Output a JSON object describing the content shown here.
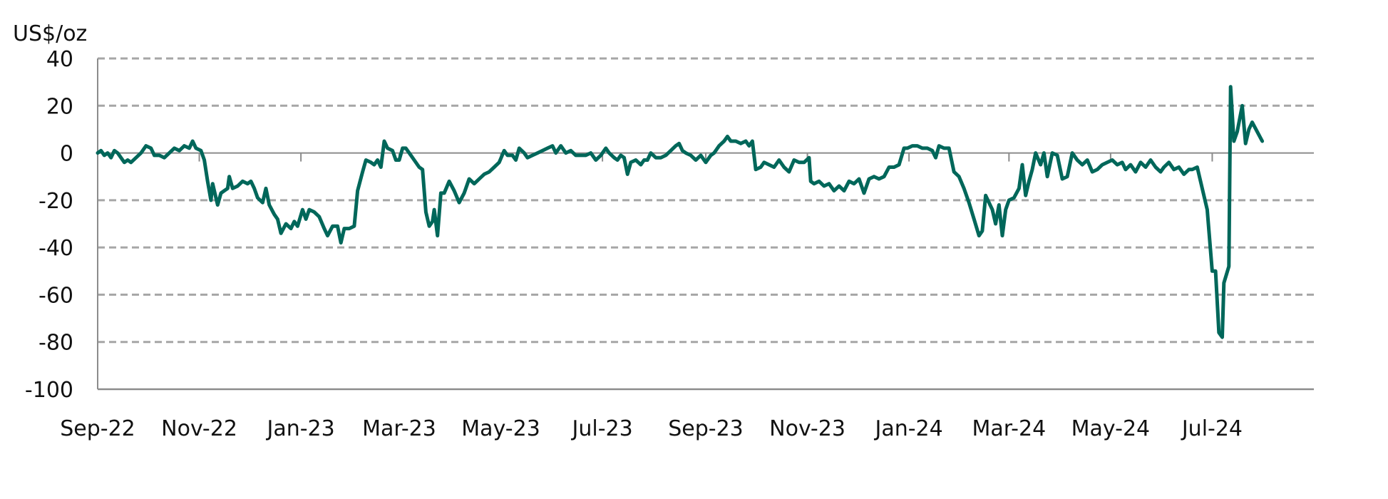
{
  "chart_data": {
    "type": "line",
    "title": "",
    "ylabel": "US$/oz",
    "xlabel": "",
    "ylim": [
      -100,
      40
    ],
    "yticks": [
      40,
      20,
      0,
      -20,
      -40,
      -60,
      -80,
      -100
    ],
    "ytick_labels": [
      "40",
      "20",
      "0",
      "-20",
      "-40",
      "-60",
      "-80",
      "-100"
    ],
    "x_range": [
      "2022-09-01",
      "2024-08-31"
    ],
    "xticks": [
      {
        "date": "2022-09-01",
        "label": "Sep-22"
      },
      {
        "date": "2022-11-01",
        "label": "Nov-22"
      },
      {
        "date": "2023-01-01",
        "label": "Jan-23"
      },
      {
        "date": "2023-03-01",
        "label": "Mar-23"
      },
      {
        "date": "2023-05-01",
        "label": "May-23"
      },
      {
        "date": "2023-07-01",
        "label": "Jul-23"
      },
      {
        "date": "2023-09-01",
        "label": "Sep-23"
      },
      {
        "date": "2023-11-01",
        "label": "Nov-23"
      },
      {
        "date": "2024-01-01",
        "label": "Jan-24"
      },
      {
        "date": "2024-03-01",
        "label": "Mar-24"
      },
      {
        "date": "2024-05-01",
        "label": "May-24"
      },
      {
        "date": "2024-07-01",
        "label": "Jul-24"
      }
    ],
    "grid": "horizontal dashed",
    "series": [
      {
        "color": "#00675a",
        "points": [
          [
            "2022-09-01",
            0
          ],
          [
            "2022-09-03",
            1
          ],
          [
            "2022-09-05",
            -1
          ],
          [
            "2022-09-07",
            0
          ],
          [
            "2022-09-09",
            -2
          ],
          [
            "2022-09-11",
            1
          ],
          [
            "2022-09-13",
            0
          ],
          [
            "2022-09-15",
            -2
          ],
          [
            "2022-09-17",
            -4
          ],
          [
            "2022-09-19",
            -3
          ],
          [
            "2022-09-21",
            -4
          ],
          [
            "2022-09-24",
            -2
          ],
          [
            "2022-09-27",
            0
          ],
          [
            "2022-09-30",
            3
          ],
          [
            "2022-10-03",
            2
          ],
          [
            "2022-10-05",
            -1
          ],
          [
            "2022-10-08",
            -1
          ],
          [
            "2022-10-11",
            -2
          ],
          [
            "2022-10-14",
            0
          ],
          [
            "2022-10-17",
            2
          ],
          [
            "2022-10-20",
            1
          ],
          [
            "2022-10-23",
            3
          ],
          [
            "2022-10-26",
            2
          ],
          [
            "2022-10-28",
            5
          ],
          [
            "2022-10-30",
            2
          ],
          [
            "2022-11-02",
            1
          ],
          [
            "2022-11-04",
            -3
          ],
          [
            "2022-11-06",
            -12
          ],
          [
            "2022-11-08",
            -20
          ],
          [
            "2022-11-09",
            -13
          ],
          [
            "2022-11-10",
            -16
          ],
          [
            "2022-11-12",
            -22
          ],
          [
            "2022-11-14",
            -17
          ],
          [
            "2022-11-16",
            -16
          ],
          [
            "2022-11-18",
            -15
          ],
          [
            "2022-11-19",
            -10
          ],
          [
            "2022-11-21",
            -15
          ],
          [
            "2022-11-24",
            -14
          ],
          [
            "2022-11-27",
            -12
          ],
          [
            "2022-11-30",
            -13
          ],
          [
            "2022-12-02",
            -12
          ],
          [
            "2022-12-04",
            -15
          ],
          [
            "2022-12-06",
            -19
          ],
          [
            "2022-12-09",
            -21
          ],
          [
            "2022-12-11",
            -15
          ],
          [
            "2022-12-13",
            -22
          ],
          [
            "2022-12-16",
            -26
          ],
          [
            "2022-12-18",
            -28
          ],
          [
            "2022-12-20",
            -34
          ],
          [
            "2022-12-23",
            -30
          ],
          [
            "2022-12-26",
            -32
          ],
          [
            "2022-12-28",
            -29
          ],
          [
            "2022-12-30",
            -31
          ],
          [
            "2023-01-02",
            -24
          ],
          [
            "2023-01-04",
            -28
          ],
          [
            "2023-01-06",
            -24
          ],
          [
            "2023-01-09",
            -25
          ],
          [
            "2023-01-12",
            -27
          ],
          [
            "2023-01-15",
            -32
          ],
          [
            "2023-01-17",
            -35
          ],
          [
            "2023-01-20",
            -31
          ],
          [
            "2023-01-23",
            -31
          ],
          [
            "2023-01-25",
            -38
          ],
          [
            "2023-01-27",
            -32
          ],
          [
            "2023-01-30",
            -32
          ],
          [
            "2023-02-02",
            -31
          ],
          [
            "2023-02-04",
            -16
          ],
          [
            "2023-02-07",
            -8
          ],
          [
            "2023-02-09",
            -3
          ],
          [
            "2023-02-12",
            -4
          ],
          [
            "2023-02-14",
            -5
          ],
          [
            "2023-02-16",
            -3
          ],
          [
            "2023-02-18",
            -6
          ],
          [
            "2023-02-20",
            5
          ],
          [
            "2023-02-22",
            2
          ],
          [
            "2023-02-25",
            1
          ],
          [
            "2023-02-27",
            -3
          ],
          [
            "2023-03-01",
            -3
          ],
          [
            "2023-03-03",
            2
          ],
          [
            "2023-03-05",
            2
          ],
          [
            "2023-03-08",
            -1
          ],
          [
            "2023-03-10",
            -3
          ],
          [
            "2023-03-13",
            -6
          ],
          [
            "2023-03-15",
            -7
          ],
          [
            "2023-03-17",
            -25
          ],
          [
            "2023-03-19",
            -31
          ],
          [
            "2023-03-21",
            -29
          ],
          [
            "2023-03-22",
            -24
          ],
          [
            "2023-03-24",
            -35
          ],
          [
            "2023-03-26",
            -17
          ],
          [
            "2023-03-28",
            -17
          ],
          [
            "2023-03-31",
            -12
          ],
          [
            "2023-04-03",
            -16
          ],
          [
            "2023-04-06",
            -21
          ],
          [
            "2023-04-09",
            -17
          ],
          [
            "2023-04-12",
            -11
          ],
          [
            "2023-04-15",
            -13
          ],
          [
            "2023-04-18",
            -11
          ],
          [
            "2023-04-21",
            -9
          ],
          [
            "2023-04-24",
            -8
          ],
          [
            "2023-04-27",
            -6
          ],
          [
            "2023-04-30",
            -4
          ],
          [
            "2023-05-03",
            1
          ],
          [
            "2023-05-05",
            -1
          ],
          [
            "2023-05-08",
            -1
          ],
          [
            "2023-05-10",
            -3
          ],
          [
            "2023-05-12",
            2
          ],
          [
            "2023-05-15",
            0
          ],
          [
            "2023-05-17",
            -2
          ],
          [
            "2023-05-20",
            -1
          ],
          [
            "2023-05-23",
            0
          ],
          [
            "2023-05-26",
            1
          ],
          [
            "2023-05-29",
            2
          ],
          [
            "2023-06-01",
            3
          ],
          [
            "2023-06-03",
            0
          ],
          [
            "2023-06-06",
            3
          ],
          [
            "2023-06-09",
            0
          ],
          [
            "2023-06-12",
            1
          ],
          [
            "2023-06-15",
            -1
          ],
          [
            "2023-06-18",
            -1
          ],
          [
            "2023-06-21",
            -1
          ],
          [
            "2023-06-24",
            0
          ],
          [
            "2023-06-27",
            -3
          ],
          [
            "2023-06-30",
            -1
          ],
          [
            "2023-07-03",
            2
          ],
          [
            "2023-07-05",
            0
          ],
          [
            "2023-07-08",
            -2
          ],
          [
            "2023-07-10",
            -3
          ],
          [
            "2023-07-12",
            -1
          ],
          [
            "2023-07-14",
            -2
          ],
          [
            "2023-07-16",
            -9
          ],
          [
            "2023-07-18",
            -4
          ],
          [
            "2023-07-21",
            -3
          ],
          [
            "2023-07-24",
            -5
          ],
          [
            "2023-07-26",
            -3
          ],
          [
            "2023-07-28",
            -3
          ],
          [
            "2023-07-30",
            0
          ],
          [
            "2023-08-02",
            -2
          ],
          [
            "2023-08-05",
            -2
          ],
          [
            "2023-08-08",
            -1
          ],
          [
            "2023-08-11",
            1
          ],
          [
            "2023-08-14",
            3
          ],
          [
            "2023-08-16",
            4
          ],
          [
            "2023-08-18",
            1
          ],
          [
            "2023-08-20",
            0
          ],
          [
            "2023-08-23",
            -1
          ],
          [
            "2023-08-26",
            -3
          ],
          [
            "2023-08-29",
            -1
          ],
          [
            "2023-09-01",
            -4
          ],
          [
            "2023-09-04",
            -1
          ],
          [
            "2023-09-06",
            0
          ],
          [
            "2023-09-09",
            3
          ],
          [
            "2023-09-12",
            5
          ],
          [
            "2023-09-14",
            7
          ],
          [
            "2023-09-16",
            5
          ],
          [
            "2023-09-19",
            5
          ],
          [
            "2023-09-22",
            4
          ],
          [
            "2023-09-25",
            5
          ],
          [
            "2023-09-27",
            3
          ],
          [
            "2023-09-29",
            5
          ],
          [
            "2023-10-01",
            -7
          ],
          [
            "2023-10-04",
            -6
          ],
          [
            "2023-10-06",
            -4
          ],
          [
            "2023-10-09",
            -5
          ],
          [
            "2023-10-12",
            -6
          ],
          [
            "2023-10-15",
            -3
          ],
          [
            "2023-10-18",
            -6
          ],
          [
            "2023-10-21",
            -8
          ],
          [
            "2023-10-24",
            -3
          ],
          [
            "2023-10-27",
            -4
          ],
          [
            "2023-10-30",
            -4
          ],
          [
            "2023-11-02",
            -2
          ],
          [
            "2023-11-03",
            -12
          ],
          [
            "2023-11-05",
            -13
          ],
          [
            "2023-11-08",
            -12
          ],
          [
            "2023-11-11",
            -14
          ],
          [
            "2023-11-14",
            -13
          ],
          [
            "2023-11-17",
            -16
          ],
          [
            "2023-11-20",
            -14
          ],
          [
            "2023-11-23",
            -16
          ],
          [
            "2023-11-26",
            -12
          ],
          [
            "2023-11-29",
            -13
          ],
          [
            "2023-12-02",
            -11
          ],
          [
            "2023-12-05",
            -17
          ],
          [
            "2023-12-08",
            -11
          ],
          [
            "2023-12-11",
            -10
          ],
          [
            "2023-12-14",
            -11
          ],
          [
            "2023-12-17",
            -10
          ],
          [
            "2023-12-20",
            -6
          ],
          [
            "2023-12-23",
            -6
          ],
          [
            "2023-12-26",
            -5
          ],
          [
            "2023-12-29",
            2
          ],
          [
            "2023-12-31",
            2
          ],
          [
            "2024-01-03",
            3
          ],
          [
            "2024-01-06",
            3
          ],
          [
            "2024-01-09",
            2
          ],
          [
            "2024-01-12",
            2
          ],
          [
            "2024-01-15",
            1
          ],
          [
            "2024-01-17",
            -2
          ],
          [
            "2024-01-19",
            3
          ],
          [
            "2024-01-22",
            2
          ],
          [
            "2024-01-25",
            2
          ],
          [
            "2024-01-28",
            -8
          ],
          [
            "2024-01-31",
            -10
          ],
          [
            "2024-02-03",
            -15
          ],
          [
            "2024-02-06",
            -21
          ],
          [
            "2024-02-09",
            -28
          ],
          [
            "2024-02-12",
            -35
          ],
          [
            "2024-02-14",
            -33
          ],
          [
            "2024-02-16",
            -18
          ],
          [
            "2024-02-18",
            -21
          ],
          [
            "2024-02-20",
            -24
          ],
          [
            "2024-02-22",
            -30
          ],
          [
            "2024-02-24",
            -22
          ],
          [
            "2024-02-26",
            -35
          ],
          [
            "2024-02-28",
            -24
          ],
          [
            "2024-03-01",
            -20
          ],
          [
            "2024-03-04",
            -19
          ],
          [
            "2024-03-07",
            -15
          ],
          [
            "2024-03-09",
            -5
          ],
          [
            "2024-03-11",
            -18
          ],
          [
            "2024-03-13",
            -12
          ],
          [
            "2024-03-15",
            -7
          ],
          [
            "2024-03-17",
            0
          ],
          [
            "2024-03-20",
            -5
          ],
          [
            "2024-03-22",
            0
          ],
          [
            "2024-03-24",
            -10
          ],
          [
            "2024-03-27",
            0
          ],
          [
            "2024-03-30",
            -1
          ],
          [
            "2024-04-02",
            -11
          ],
          [
            "2024-04-05",
            -10
          ],
          [
            "2024-04-08",
            0
          ],
          [
            "2024-04-11",
            -3
          ],
          [
            "2024-04-14",
            -5
          ],
          [
            "2024-04-17",
            -3
          ],
          [
            "2024-04-20",
            -8
          ],
          [
            "2024-04-23",
            -7
          ],
          [
            "2024-04-26",
            -5
          ],
          [
            "2024-04-29",
            -4
          ],
          [
            "2024-05-02",
            -3
          ],
          [
            "2024-05-05",
            -5
          ],
          [
            "2024-05-08",
            -4
          ],
          [
            "2024-05-10",
            -7
          ],
          [
            "2024-05-13",
            -5
          ],
          [
            "2024-05-16",
            -8
          ],
          [
            "2024-05-19",
            -4
          ],
          [
            "2024-05-22",
            -6
          ],
          [
            "2024-05-25",
            -3
          ],
          [
            "2024-05-28",
            -6
          ],
          [
            "2024-05-31",
            -8
          ],
          [
            "2024-06-02",
            -6
          ],
          [
            "2024-06-05",
            -4
          ],
          [
            "2024-06-08",
            -7
          ],
          [
            "2024-06-11",
            -6
          ],
          [
            "2024-06-14",
            -9
          ],
          [
            "2024-06-17",
            -7
          ],
          [
            "2024-06-19",
            -7
          ],
          [
            "2024-06-22",
            -6
          ],
          [
            "2024-06-25",
            -15
          ],
          [
            "2024-06-28",
            -24
          ],
          [
            "2024-07-01",
            -50
          ],
          [
            "2024-07-03",
            -50
          ],
          [
            "2024-07-05",
            -76
          ],
          [
            "2024-07-07",
            -78
          ],
          [
            "2024-07-08",
            -55
          ],
          [
            "2024-07-11",
            -48
          ],
          [
            "2024-07-12",
            28
          ],
          [
            "2024-07-14",
            5
          ],
          [
            "2024-07-16",
            9
          ],
          [
            "2024-07-19",
            20
          ],
          [
            "2024-07-21",
            4
          ],
          [
            "2024-07-23",
            10
          ],
          [
            "2024-07-25",
            13
          ],
          [
            "2024-07-28",
            9
          ],
          [
            "2024-07-31",
            5
          ]
        ]
      }
    ]
  }
}
